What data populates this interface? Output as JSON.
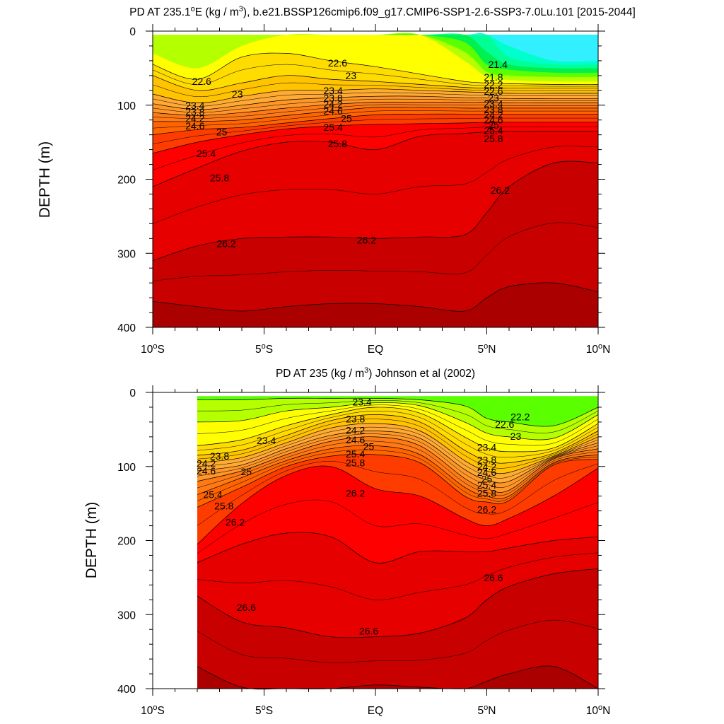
{
  "chart_data": [
    {
      "type": "heatmap",
      "subtype": "filled-contour",
      "title_parts": [
        "PD AT 235.1",
        "o",
        "E (kg / m",
        "3",
        "), b.e21.BSSP126cmip6.f09_g17.CMIP6-SSP1-2.6-SSP3-7.0Lu.101 [2015-2044]"
      ],
      "ylabel": "DEPTH (m)",
      "xlim": [
        -10,
        10
      ],
      "ylim": [
        400,
        0
      ],
      "x_ticks": [
        {
          "value": -10,
          "parts": [
            "10",
            "o",
            "S"
          ]
        },
        {
          "value": -5,
          "parts": [
            "5",
            "o",
            "S"
          ]
        },
        {
          "value": 0,
          "parts": [
            "EQ",
            "",
            ""
          ]
        },
        {
          "value": 5,
          "parts": [
            "5",
            "o",
            "N"
          ]
        },
        {
          "value": 10,
          "parts": [
            "10",
            "o",
            "N"
          ]
        }
      ],
      "y_ticks": [
        {
          "value": 0,
          "label": "0"
        },
        {
          "value": 100,
          "label": "100"
        },
        {
          "value": 200,
          "label": "200"
        },
        {
          "value": 300,
          "label": "300"
        },
        {
          "value": 400,
          "label": "400"
        }
      ],
      "data_xrange": [
        -10,
        10
      ],
      "field_top": 5,
      "anchors_x": [
        -10,
        -8,
        -6,
        -4,
        -2,
        0,
        2,
        4,
        5,
        6,
        8,
        10
      ],
      "isopycnals": [
        {
          "level": 22.6,
          "depths": [
            45,
            65,
            35,
            30,
            40,
            48,
            58,
            68,
            70,
            71,
            72,
            72
          ]
        },
        {
          "level": 23.0,
          "depths": [
            60,
            80,
            70,
            60,
            65,
            68,
            72,
            76,
            77,
            77,
            77,
            77
          ]
        },
        {
          "level": 23.4,
          "depths": [
            85,
            97,
            88,
            80,
            80,
            78,
            80,
            82,
            83,
            84,
            84,
            84
          ]
        },
        {
          "level": 23.8,
          "depths": [
            98,
            106,
            100,
            93,
            90,
            88,
            88,
            90,
            90,
            91,
            91,
            91
          ]
        },
        {
          "level": 24.2,
          "depths": [
            110,
            114,
            110,
            104,
            99,
            96,
            96,
            96,
            96,
            97,
            97,
            97
          ]
        },
        {
          "level": 24.6,
          "depths": [
            122,
            122,
            120,
            114,
            108,
            103,
            103,
            104,
            104,
            104,
            104,
            104
          ]
        },
        {
          "level": 25.0,
          "depths": [
            140,
            133,
            130,
            124,
            118,
            113,
            112,
            112,
            112,
            112,
            112,
            112
          ]
        },
        {
          "level": 25.4,
          "depths": [
            165,
            150,
            140,
            132,
            128,
            126,
            125,
            124,
            123,
            123,
            123,
            123
          ]
        },
        {
          "level": 25.8,
          "depths": [
            210,
            185,
            162,
            150,
            150,
            160,
            142,
            138,
            136,
            135,
            135,
            135
          ]
        },
        {
          "level": 26.2,
          "depths": [
            310,
            290,
            280,
            278,
            278,
            280,
            278,
            275,
            245,
            210,
            178,
            178
          ]
        },
        {
          "level": 26.6,
          "depths": [
            365,
            372,
            378,
            372,
            368,
            368,
            372,
            378,
            360,
            345,
            340,
            352
          ]
        }
      ],
      "contour_labels": [
        {
          "text": "22.6",
          "x": -7.8,
          "y": 68
        },
        {
          "text": "23",
          "x": -6.2,
          "y": 85
        },
        {
          "text": "23.4",
          "x": -8.1,
          "y": 100
        },
        {
          "text": "23.8",
          "x": -8.1,
          "y": 109
        },
        {
          "text": "24.2",
          "x": -8.1,
          "y": 118
        },
        {
          "text": "24.6",
          "x": -8.1,
          "y": 128
        },
        {
          "text": "25",
          "x": -6.9,
          "y": 136
        },
        {
          "text": "25.4",
          "x": -7.6,
          "y": 165
        },
        {
          "text": "25.8",
          "x": -7.0,
          "y": 198
        },
        {
          "text": "26.2",
          "x": -6.7,
          "y": 287
        },
        {
          "text": "22.6",
          "x": -1.7,
          "y": 43
        },
        {
          "text": "23",
          "x": -1.1,
          "y": 60
        },
        {
          "text": "23.4",
          "x": -1.9,
          "y": 80
        },
        {
          "text": "23.8",
          "x": -1.9,
          "y": 90
        },
        {
          "text": "24.2",
          "x": -1.9,
          "y": 99
        },
        {
          "text": "24.6",
          "x": -1.9,
          "y": 108
        },
        {
          "text": "25",
          "x": -1.3,
          "y": 118
        },
        {
          "text": "25.4",
          "x": -1.9,
          "y": 130
        },
        {
          "text": "25.8",
          "x": -1.7,
          "y": 152
        },
        {
          "text": "26.2",
          "x": -0.4,
          "y": 282
        },
        {
          "text": "21.4",
          "x": 5.5,
          "y": 45
        },
        {
          "text": "21.8",
          "x": 5.3,
          "y": 62
        },
        {
          "text": "22.2",
          "x": 5.3,
          "y": 72
        },
        {
          "text": "22.6",
          "x": 5.3,
          "y": 81
        },
        {
          "text": "23",
          "x": 5.3,
          "y": 90
        },
        {
          "text": "23.4",
          "x": 5.3,
          "y": 98
        },
        {
          "text": "23.8",
          "x": 5.3,
          "y": 106
        },
        {
          "text": "24.2",
          "x": 5.3,
          "y": 113
        },
        {
          "text": "24.6",
          "x": 5.3,
          "y": 120
        },
        {
          "text": "25",
          "x": 5.3,
          "y": 127
        },
        {
          "text": "25.4",
          "x": 5.3,
          "y": 134
        },
        {
          "text": "25.8",
          "x": 5.3,
          "y": 145
        },
        {
          "text": "26.2",
          "x": 5.6,
          "y": 215
        }
      ]
    },
    {
      "type": "heatmap",
      "subtype": "filled-contour",
      "title_parts": [
        "PD AT 235 (kg / m",
        "3",
        ") Johnson et al (2002)"
      ],
      "ylabel": "DEPTH (m)",
      "xlim": [
        -10,
        10
      ],
      "ylim": [
        400,
        0
      ],
      "x_ticks": [
        {
          "value": -10,
          "parts": [
            "10",
            "o",
            "S"
          ]
        },
        {
          "value": -5,
          "parts": [
            "5",
            "o",
            "S"
          ]
        },
        {
          "value": 0,
          "parts": [
            "EQ",
            "",
            ""
          ]
        },
        {
          "value": 5,
          "parts": [
            "5",
            "o",
            "N"
          ]
        },
        {
          "value": 10,
          "parts": [
            "10",
            "o",
            "N"
          ]
        }
      ],
      "y_ticks": [
        {
          "value": 0,
          "label": "0"
        },
        {
          "value": 100,
          "label": "100"
        },
        {
          "value": 200,
          "label": "200"
        },
        {
          "value": 300,
          "label": "300"
        },
        {
          "value": 400,
          "label": "400"
        }
      ],
      "data_xrange": [
        -8,
        10
      ],
      "field_top": 5,
      "anchors_x": [
        -8,
        -6,
        -4,
        -2,
        0,
        2,
        4,
        5,
        6,
        8,
        10
      ],
      "isopycnals": [
        {
          "level": 22.6,
          "depths": [
            10,
            10,
            8,
            8,
            8,
            10,
            18,
            35,
            40,
            45,
            20
          ]
        },
        {
          "level": 23.0,
          "depths": [
            40,
            38,
            25,
            20,
            14,
            18,
            40,
            55,
            60,
            62,
            30
          ]
        },
        {
          "level": 23.4,
          "depths": [
            72,
            64,
            45,
            30,
            20,
            28,
            60,
            75,
            80,
            75,
            42
          ]
        },
        {
          "level": 23.8,
          "depths": [
            85,
            78,
            58,
            38,
            30,
            40,
            78,
            92,
            95,
            82,
            52
          ]
        },
        {
          "level": 24.2,
          "depths": [
            95,
            88,
            68,
            48,
            42,
            52,
            92,
            106,
            108,
            86,
            60
          ]
        },
        {
          "level": 24.6,
          "depths": [
            106,
            98,
            76,
            58,
            52,
            62,
            104,
            118,
            120,
            88,
            68
          ]
        },
        {
          "level": 25.0,
          "depths": [
            120,
            106,
            84,
            66,
            60,
            72,
            116,
            130,
            132,
            90,
            76
          ]
        },
        {
          "level": 25.4,
          "depths": [
            138,
            115,
            92,
            76,
            72,
            84,
            128,
            140,
            140,
            95,
            84
          ]
        },
        {
          "level": 25.8,
          "depths": [
            155,
            128,
            100,
            86,
            84,
            95,
            140,
            148,
            146,
            98,
            90
          ]
        },
        {
          "level": 26.2,
          "depths": [
            205,
            150,
            112,
            100,
            130,
            140,
            170,
            180,
            170,
            140,
            102
          ]
        },
        {
          "level": 26.6,
          "depths": [
            230,
            205,
            190,
            195,
            230,
            215,
            215,
            215,
            210,
            200,
            195
          ]
        },
        {
          "level": 27.0,
          "depths": [
            275,
            310,
            318,
            330,
            330,
            325,
            305,
            280,
            262,
            245,
            238
          ]
        },
        {
          "level": 27.4,
          "depths": [
            370,
            398,
            400,
            400,
            395,
            398,
            400,
            390,
            380,
            370,
            400
          ]
        }
      ],
      "contour_labels": [
        {
          "text": "23.4",
          "x": -4.9,
          "y": 65
        },
        {
          "text": "23.8",
          "x": -7.0,
          "y": 86
        },
        {
          "text": "24.2",
          "x": -7.6,
          "y": 96
        },
        {
          "text": "24.6",
          "x": -7.6,
          "y": 106
        },
        {
          "text": "25",
          "x": -5.8,
          "y": 107
        },
        {
          "text": "25.4",
          "x": -7.3,
          "y": 138
        },
        {
          "text": "25.8",
          "x": -6.8,
          "y": 153
        },
        {
          "text": "26.2",
          "x": -6.3,
          "y": 175
        },
        {
          "text": "26.6",
          "x": -5.8,
          "y": 290
        },
        {
          "text": "23.4",
          "x": -0.6,
          "y": 13
        },
        {
          "text": "23.8",
          "x": -0.9,
          "y": 36
        },
        {
          "text": "24.2",
          "x": -0.9,
          "y": 51
        },
        {
          "text": "24.6",
          "x": -0.9,
          "y": 64
        },
        {
          "text": "25",
          "x": -0.3,
          "y": 73
        },
        {
          "text": "25.4",
          "x": -0.9,
          "y": 83
        },
        {
          "text": "25.8",
          "x": -0.9,
          "y": 95
        },
        {
          "text": "26.2",
          "x": -0.9,
          "y": 136
        },
        {
          "text": "26.6",
          "x": -0.3,
          "y": 322
        },
        {
          "text": "22.2",
          "x": 6.5,
          "y": 33
        },
        {
          "text": "22.6",
          "x": 5.8,
          "y": 43
        },
        {
          "text": "23",
          "x": 6.3,
          "y": 59
        },
        {
          "text": "23.4",
          "x": 5.0,
          "y": 74
        },
        {
          "text": "23.8",
          "x": 5.0,
          "y": 91
        },
        {
          "text": "24.2",
          "x": 5.0,
          "y": 100
        },
        {
          "text": "24.6",
          "x": 5.0,
          "y": 108
        },
        {
          "text": "25",
          "x": 5.0,
          "y": 117
        },
        {
          "text": "25.4",
          "x": 5.0,
          "y": 125
        },
        {
          "text": "25.8",
          "x": 5.0,
          "y": 136
        },
        {
          "text": "26.2",
          "x": 5.0,
          "y": 158
        },
        {
          "text": "26.6",
          "x": 5.3,
          "y": 250
        }
      ]
    }
  ],
  "colors": {
    "contour_line": "#000000",
    "fill_palette": [
      "#ffffff",
      "#6b6b6b",
      "#b3b3b3",
      "#ff00ff",
      "#c800e6",
      "#8a14e6",
      "#3c00e6",
      "#0014ff",
      "#0050ff",
      "#0a78ff",
      "#00a0ff",
      "#00c8ff",
      "#00dcff",
      "#32f0ff",
      "#00ffcc",
      "#00ff96",
      "#00f050",
      "#5aff00",
      "#b4ff00",
      "#ffff00",
      "#ffdc00",
      "#ffc300",
      "#ffaa32",
      "#ff9628",
      "#ff7a14",
      "#ff6400",
      "#ff3c00",
      "#ff0000",
      "#e60000",
      "#c80000",
      "#aa0000"
    ]
  }
}
